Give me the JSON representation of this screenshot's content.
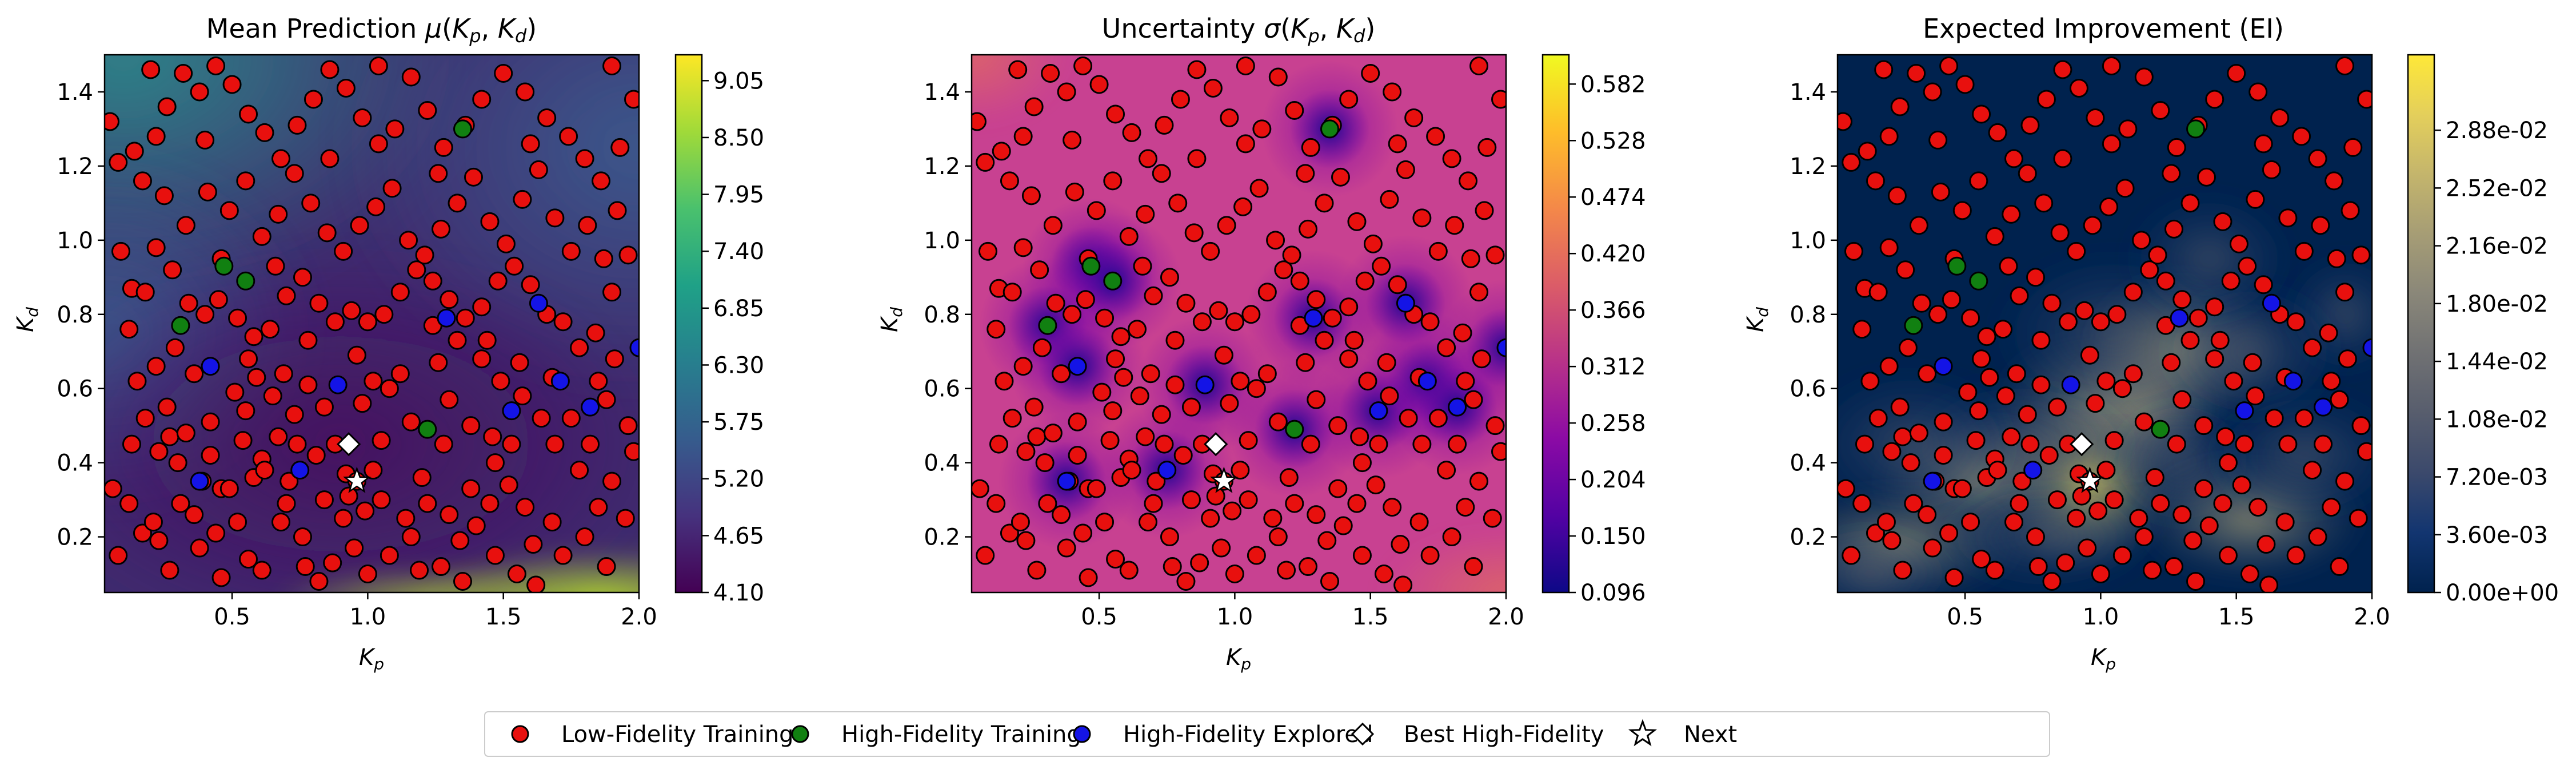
{
  "chart_data": [
    {
      "type": "heatmap",
      "id": "mean",
      "title": "Mean Prediction μ(Kp, Kd)",
      "title_parts": {
        "prefix": "Mean Prediction ",
        "func": "μ",
        "open": "(",
        "a": "K",
        "a_sub": "p",
        "sep": ", ",
        "b": "K",
        "b_sub": "d",
        "close": ")"
      },
      "xlabel": {
        "base": "K",
        "sub": "p"
      },
      "ylabel": {
        "base": "K",
        "sub": "d"
      },
      "xlim": [
        0.03,
        2.0
      ],
      "ylim": [
        0.05,
        1.5
      ],
      "xticks": [
        "0.5",
        "1.0",
        "1.5",
        "2.0"
      ],
      "yticks": [
        "0.2",
        "0.4",
        "0.6",
        "0.8",
        "1.0",
        "1.2",
        "1.4"
      ],
      "colormap": "viridis",
      "colorbar": {
        "min": 4.1,
        "max": 9.3,
        "ticks": [
          "4.10",
          "4.65",
          "5.20",
          "5.75",
          "6.30",
          "6.85",
          "7.40",
          "7.95",
          "8.50",
          "9.05"
        ]
      }
    },
    {
      "type": "heatmap",
      "id": "sigma",
      "title": "Uncertainty σ(Kp, Kd)",
      "title_parts": {
        "prefix": "Uncertainty ",
        "func": "σ",
        "open": "(",
        "a": "K",
        "a_sub": "p",
        "sep": ", ",
        "b": "K",
        "b_sub": "d",
        "close": ")"
      },
      "xlabel": {
        "base": "K",
        "sub": "p"
      },
      "ylabel": {
        "base": "K",
        "sub": "d"
      },
      "xlim": [
        0.03,
        2.0
      ],
      "ylim": [
        0.05,
        1.5
      ],
      "xticks": [
        "0.5",
        "1.0",
        "1.5",
        "2.0"
      ],
      "yticks": [
        "0.2",
        "0.4",
        "0.6",
        "0.8",
        "1.0",
        "1.2",
        "1.4"
      ],
      "colormap": "plasma",
      "colorbar": {
        "min": 0.096,
        "max": 0.61,
        "ticks": [
          "0.096",
          "0.150",
          "0.204",
          "0.258",
          "0.312",
          "0.366",
          "0.420",
          "0.474",
          "0.528",
          "0.582"
        ]
      }
    },
    {
      "type": "heatmap",
      "id": "ei",
      "title": "Expected Improvement (EI)",
      "xlabel": {
        "base": "K",
        "sub": "p"
      },
      "ylabel": {
        "base": "K",
        "sub": "d"
      },
      "xlim": [
        0.03,
        2.0
      ],
      "ylim": [
        0.05,
        1.5
      ],
      "xticks": [
        "0.5",
        "1.0",
        "1.5",
        "2.0"
      ],
      "yticks": [
        "0.2",
        "0.4",
        "0.6",
        "0.8",
        "1.0",
        "1.2",
        "1.4"
      ],
      "colormap": "cividis",
      "colorbar": {
        "min": 0.0,
        "max": 0.0335,
        "ticks": [
          "0.00e+00",
          "3.60e-03",
          "7.20e-03",
          "1.08e-02",
          "1.44e-02",
          "1.80e-02",
          "2.16e-02",
          "2.52e-02",
          "2.88e-02"
        ]
      }
    }
  ],
  "points": {
    "low_fidelity": [
      [
        0.39,
        0.35
      ],
      [
        0.46,
        0.33
      ],
      [
        0.58,
        0.36
      ],
      [
        0.61,
        0.41
      ],
      [
        0.42,
        0.42
      ],
      [
        0.3,
        0.4
      ],
      [
        0.23,
        0.43
      ],
      [
        0.27,
        0.47
      ],
      [
        0.33,
        0.48
      ],
      [
        0.26,
        0.55
      ],
      [
        0.13,
        0.45
      ],
      [
        0.06,
        0.33
      ],
      [
        0.17,
        0.21
      ],
      [
        0.23,
        0.19
      ],
      [
        0.21,
        0.24
      ],
      [
        0.31,
        0.29
      ],
      [
        0.38,
        0.17
      ],
      [
        0.44,
        0.21
      ],
      [
        0.56,
        0.14
      ],
      [
        0.49,
        0.33
      ],
      [
        0.42,
        0.51
      ],
      [
        0.55,
        0.54
      ],
      [
        0.51,
        0.59
      ],
      [
        0.59,
        0.63
      ],
      [
        0.65,
        0.58
      ],
      [
        0.69,
        0.64
      ],
      [
        0.73,
        0.53
      ],
      [
        0.78,
        0.61
      ],
      [
        0.84,
        0.55
      ],
      [
        0.67,
        0.47
      ],
      [
        0.62,
        0.38
      ],
      [
        0.71,
        0.35
      ],
      [
        0.76,
        0.2
      ],
      [
        0.68,
        0.24
      ],
      [
        0.61,
        0.11
      ],
      [
        0.77,
        0.12
      ],
      [
        0.87,
        0.13
      ],
      [
        0.95,
        0.17
      ],
      [
        0.91,
        0.25
      ],
      [
        0.99,
        0.27
      ],
      [
        0.84,
        0.3
      ],
      [
        0.81,
        0.42
      ],
      [
        0.88,
        0.45
      ],
      [
        0.92,
        0.37
      ],
      [
        0.93,
        0.31
      ],
      [
        0.96,
        0.35
      ],
      [
        1.02,
        0.38
      ],
      [
        1.05,
        0.46
      ],
      [
        0.98,
        0.56
      ],
      [
        1.08,
        0.6
      ],
      [
        1.12,
        0.64
      ],
      [
        1.16,
        0.51
      ],
      [
        1.2,
        0.36
      ],
      [
        1.22,
        0.29
      ],
      [
        1.14,
        0.25
      ],
      [
        1.08,
        0.15
      ],
      [
        1.19,
        0.11
      ],
      [
        1.27,
        0.12
      ],
      [
        1.34,
        0.19
      ],
      [
        1.4,
        0.23
      ],
      [
        1.38,
        0.33
      ],
      [
        1.47,
        0.4
      ],
      [
        1.52,
        0.34
      ],
      [
        1.58,
        0.28
      ],
      [
        1.61,
        0.18
      ],
      [
        1.72,
        0.15
      ],
      [
        1.8,
        0.2
      ],
      [
        1.85,
        0.28
      ],
      [
        1.78,
        0.38
      ],
      [
        1.69,
        0.45
      ],
      [
        1.64,
        0.52
      ],
      [
        1.57,
        0.58
      ],
      [
        1.49,
        0.62
      ],
      [
        1.42,
        0.68
      ],
      [
        1.33,
        0.73
      ],
      [
        1.26,
        0.67
      ],
      [
        1.3,
        0.57
      ],
      [
        1.38,
        0.5
      ],
      [
        1.46,
        0.47
      ],
      [
        1.53,
        0.45
      ],
      [
        1.75,
        0.52
      ],
      [
        1.85,
        0.62
      ],
      [
        1.91,
        0.68
      ],
      [
        1.96,
        0.5
      ],
      [
        1.98,
        0.43
      ],
      [
        1.9,
        0.35
      ],
      [
        1.95,
        0.25
      ],
      [
        1.88,
        0.12
      ],
      [
        1.55,
        0.1
      ],
      [
        1.47,
        0.15
      ],
      [
        1.3,
        0.26
      ],
      [
        1.05,
        0.3
      ],
      [
        0.09,
        0.97
      ],
      [
        0.13,
        0.87
      ],
      [
        0.18,
        0.86
      ],
      [
        0.22,
        0.98
      ],
      [
        0.28,
        0.92
      ],
      [
        0.34,
        0.83
      ],
      [
        0.4,
        0.8
      ],
      [
        0.45,
        0.84
      ],
      [
        0.52,
        0.79
      ],
      [
        0.58,
        0.74
      ],
      [
        0.64,
        0.76
      ],
      [
        0.7,
        0.85
      ],
      [
        0.76,
        0.9
      ],
      [
        0.82,
        0.83
      ],
      [
        0.88,
        0.78
      ],
      [
        0.94,
        0.81
      ],
      [
        1.0,
        0.78
      ],
      [
        1.06,
        0.8
      ],
      [
        1.12,
        0.86
      ],
      [
        1.18,
        0.92
      ],
      [
        1.24,
        0.89
      ],
      [
        1.3,
        0.84
      ],
      [
        1.36,
        0.79
      ],
      [
        1.42,
        0.82
      ],
      [
        1.48,
        0.89
      ],
      [
        1.54,
        0.93
      ],
      [
        1.6,
        0.88
      ],
      [
        1.66,
        0.8
      ],
      [
        1.72,
        0.78
      ],
      [
        1.78,
        0.71
      ],
      [
        1.84,
        0.75
      ],
      [
        1.9,
        0.86
      ],
      [
        1.96,
        0.96
      ],
      [
        1.92,
        1.08
      ],
      [
        1.86,
        1.16
      ],
      [
        1.8,
        1.22
      ],
      [
        1.74,
        1.28
      ],
      [
        1.66,
        1.33
      ],
      [
        1.58,
        1.4
      ],
      [
        1.5,
        1.45
      ],
      [
        1.42,
        1.38
      ],
      [
        1.36,
        1.31
      ],
      [
        1.28,
        1.25
      ],
      [
        1.22,
        1.35
      ],
      [
        1.16,
        1.44
      ],
      [
        1.1,
        1.3
      ],
      [
        1.04,
        1.26
      ],
      [
        0.98,
        1.33
      ],
      [
        0.92,
        1.41
      ],
      [
        0.86,
        1.46
      ],
      [
        0.8,
        1.38
      ],
      [
        0.74,
        1.31
      ],
      [
        0.68,
        1.22
      ],
      [
        0.62,
        1.29
      ],
      [
        0.56,
        1.34
      ],
      [
        0.5,
        1.42
      ],
      [
        0.44,
        1.47
      ],
      [
        0.38,
        1.4
      ],
      [
        0.32,
        1.45
      ],
      [
        0.26,
        1.36
      ],
      [
        0.2,
        1.46
      ],
      [
        0.14,
        1.24
      ],
      [
        0.08,
        1.21
      ],
      [
        0.05,
        1.32
      ],
      [
        0.17,
        1.16
      ],
      [
        0.25,
        1.12
      ],
      [
        0.33,
        1.04
      ],
      [
        0.41,
        1.13
      ],
      [
        0.49,
        1.08
      ],
      [
        0.55,
        1.16
      ],
      [
        0.61,
        1.01
      ],
      [
        0.67,
        1.07
      ],
      [
        0.73,
        1.18
      ],
      [
        0.79,
        1.1
      ],
      [
        0.85,
        1.02
      ],
      [
        0.91,
        0.97
      ],
      [
        0.97,
        1.04
      ],
      [
        1.03,
        1.09
      ],
      [
        1.09,
        1.14
      ],
      [
        1.15,
        1.0
      ],
      [
        1.21,
        0.96
      ],
      [
        1.27,
        1.03
      ],
      [
        1.33,
        1.1
      ],
      [
        1.39,
        1.17
      ],
      [
        1.45,
        1.05
      ],
      [
        1.51,
        0.99
      ],
      [
        1.57,
        1.11
      ],
      [
        1.63,
        1.19
      ],
      [
        1.69,
        1.06
      ],
      [
        1.75,
        0.97
      ],
      [
        1.81,
        1.04
      ],
      [
        1.87,
        0.95
      ],
      [
        1.93,
        1.25
      ],
      [
        1.98,
        1.38
      ],
      [
        1.9,
        1.47
      ],
      [
        0.15,
        0.62
      ],
      [
        0.22,
        0.66
      ],
      [
        0.29,
        0.71
      ],
      [
        0.36,
        0.64
      ],
      [
        0.56,
        0.68
      ],
      [
        0.78,
        0.73
      ],
      [
        0.96,
        0.69
      ],
      [
        1.02,
        0.62
      ],
      [
        1.24,
        0.77
      ],
      [
        1.44,
        0.73
      ],
      [
        1.56,
        0.67
      ],
      [
        1.68,
        0.63
      ],
      [
        1.88,
        0.57
      ],
      [
        0.12,
        0.29
      ],
      [
        0.36,
        0.26
      ],
      [
        0.52,
        0.24
      ],
      [
        0.7,
        0.29
      ],
      [
        1.16,
        0.2
      ],
      [
        1.45,
        0.29
      ],
      [
        1.68,
        0.24
      ],
      [
        1.82,
        0.45
      ],
      [
        0.08,
        0.15
      ],
      [
        0.27,
        0.11
      ],
      [
        0.46,
        0.09
      ],
      [
        0.82,
        0.08
      ],
      [
        1.0,
        0.1
      ],
      [
        1.35,
        0.08
      ],
      [
        1.62,
        0.07
      ],
      [
        1.28,
        0.45
      ],
      [
        0.74,
        0.45
      ],
      [
        0.54,
        0.46
      ],
      [
        0.18,
        0.52
      ],
      [
        0.12,
        0.76
      ],
      [
        0.46,
        0.95
      ],
      [
        0.66,
        0.93
      ],
      [
        0.86,
        1.22
      ],
      [
        1.04,
        1.47
      ],
      [
        1.6,
        1.26
      ],
      [
        1.26,
        1.18
      ],
      [
        0.4,
        1.27
      ],
      [
        0.22,
        1.28
      ]
    ],
    "high_fidelity_training": [
      [
        0.47,
        0.93
      ],
      [
        0.55,
        0.89
      ],
      [
        0.31,
        0.77
      ],
      [
        1.22,
        0.49
      ],
      [
        1.35,
        1.3
      ]
    ],
    "high_fidelity_explored": [
      [
        0.38,
        0.35
      ],
      [
        0.42,
        0.66
      ],
      [
        0.75,
        0.38
      ],
      [
        0.89,
        0.61
      ],
      [
        1.29,
        0.79
      ],
      [
        1.53,
        0.54
      ],
      [
        1.63,
        0.83
      ],
      [
        1.71,
        0.62
      ],
      [
        1.82,
        0.55
      ],
      [
        2.0,
        0.71
      ]
    ],
    "best_high_fidelity": [
      0.93,
      0.45
    ],
    "next": [
      0.96,
      0.35
    ]
  },
  "legend": {
    "items": [
      {
        "label": "Low-Fidelity Training",
        "marker": "circle",
        "color": "#e8100e"
      },
      {
        "label": "High-Fidelity Training",
        "marker": "circle",
        "color": "#118011"
      },
      {
        "label": "High-Fidelity Explored",
        "marker": "circle",
        "color": "#1414e6"
      },
      {
        "label": "Best High-Fidelity",
        "marker": "diamond",
        "color": "#ffffff"
      },
      {
        "label": "Next",
        "marker": "star",
        "color": "#ffffff"
      }
    ]
  }
}
